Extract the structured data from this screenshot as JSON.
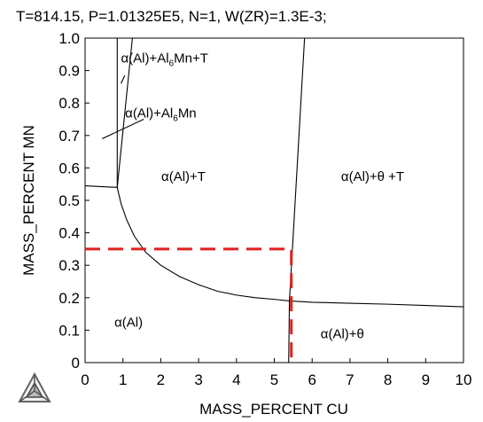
{
  "header": "T=814.15, P=1.01325E5, N=1, W(ZR)=1.3E-3;",
  "chart_data": {
    "type": "line",
    "xlabel": "MASS_PERCENT CU",
    "ylabel": "MASS_PERCENT MN",
    "xlim": [
      0,
      10
    ],
    "ylim": [
      0,
      1.0
    ],
    "xticks": [
      0,
      1,
      2,
      3,
      4,
      5,
      6,
      7,
      8,
      9,
      10
    ],
    "yticks": [
      0,
      0.1,
      0.2,
      0.3,
      0.4,
      0.5,
      0.6,
      0.7,
      0.8,
      0.9,
      1.0
    ],
    "grid": false,
    "legend": "none",
    "phase_boundaries": [
      {
        "points": [
          [
            0,
            0.545
          ],
          [
            0.85,
            0.54
          ]
        ]
      },
      {
        "points": [
          [
            0.85,
            1.0
          ],
          [
            0.85,
            0.54
          ]
        ]
      },
      {
        "points": [
          [
            0.85,
            0.54
          ],
          [
            1.25,
            1.0
          ]
        ]
      },
      {
        "points": [
          [
            0.85,
            0.54
          ],
          [
            0.95,
            0.49
          ],
          [
            1.1,
            0.44
          ],
          [
            1.3,
            0.39
          ],
          [
            1.6,
            0.34
          ],
          [
            2.0,
            0.3
          ],
          [
            2.5,
            0.265
          ],
          [
            3.0,
            0.24
          ],
          [
            3.5,
            0.22
          ],
          [
            4.0,
            0.208
          ],
          [
            4.5,
            0.2
          ],
          [
            5.0,
            0.195
          ],
          [
            5.4,
            0.19
          ]
        ]
      },
      {
        "points": [
          [
            5.4,
            0.19
          ],
          [
            6.0,
            0.186
          ],
          [
            7.0,
            0.183
          ],
          [
            8.0,
            0.18
          ],
          [
            9.0,
            0.176
          ],
          [
            10.0,
            0.172
          ]
        ]
      },
      {
        "points": [
          [
            5.4,
            0.19
          ],
          [
            5.8,
            1.0
          ]
        ]
      },
      {
        "points": [
          [
            5.4,
            0.19
          ],
          [
            5.38,
            0.0
          ]
        ]
      }
    ],
    "marker_lines": {
      "color": "#e02020",
      "points": [
        [
          0,
          0.35
        ],
        [
          5.45,
          0.35
        ],
        [
          5.45,
          0.0
        ]
      ]
    },
    "region_labels": [
      {
        "text": "α(Al)+Al6Mn+T",
        "x": 2.1,
        "y": 0.925
      },
      {
        "text": "α(Al)+Al6Mn",
        "x": 2.0,
        "y": 0.755
      },
      {
        "text": "α(Al)+T",
        "x": 2.6,
        "y": 0.56
      },
      {
        "text": "α(Al)+θ +T",
        "x": 7.6,
        "y": 0.56
      },
      {
        "text": "α(Al)",
        "x": 1.15,
        "y": 0.11
      },
      {
        "text": "α(Al)+θ",
        "x": 6.8,
        "y": 0.075
      }
    ],
    "pointer_lines": [
      {
        "from": [
          1.05,
          0.885
        ],
        "to": [
          0.95,
          0.86
        ]
      },
      {
        "from": [
          1.55,
          0.75
        ],
        "to": [
          0.45,
          0.69
        ]
      }
    ]
  }
}
